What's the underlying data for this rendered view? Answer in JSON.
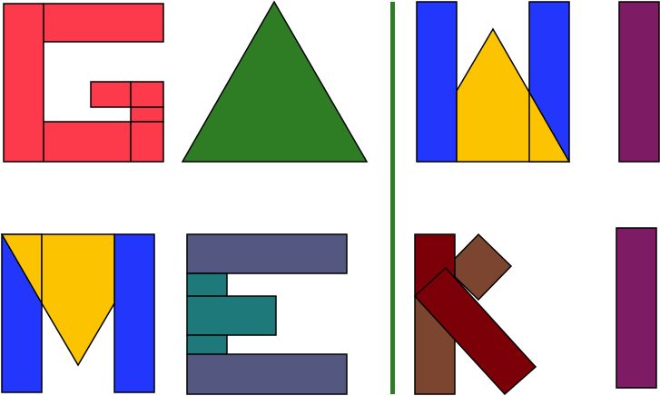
{
  "image": {
    "title": ""
  },
  "colors": {
    "red": "#fc3a4c",
    "green": "#2e7d24",
    "blue": "#2236fc",
    "yellow": "#fcc400",
    "purple": "#7d1c64",
    "slate": "#545780",
    "teal": "#1e7a7a",
    "dark_red": "#7c0008",
    "brown": "#7c4530",
    "divider": "#2e7d24",
    "outline": "#000000"
  },
  "puzzle": {
    "top_word_letters": [
      "G",
      "A",
      "W",
      "I"
    ],
    "bottom_word_letters": [
      "M",
      "E",
      "K",
      "I"
    ],
    "pieces": [
      {
        "name": "letter-g-piece",
        "letter": "G",
        "color_key": "red"
      },
      {
        "name": "letter-a-triangle",
        "letter": "A",
        "color_key": "green"
      },
      {
        "name": "letter-w-piece",
        "letter": "W",
        "color_key": "blue"
      },
      {
        "name": "letter-i-top-bar",
        "letter": "I",
        "color_key": "purple"
      },
      {
        "name": "letter-m-piece",
        "letter": "M",
        "color_key": "blue"
      },
      {
        "name": "letter-e-piece",
        "letter": "E",
        "color_key": "slate"
      },
      {
        "name": "letter-k-piece",
        "letter": "K",
        "color_key": "dark_red"
      },
      {
        "name": "letter-i-bottom-bar",
        "letter": "I",
        "color_key": "purple"
      }
    ]
  }
}
